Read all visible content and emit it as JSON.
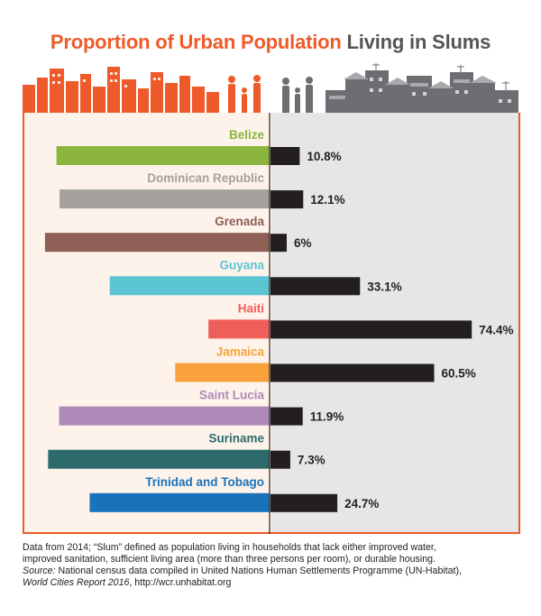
{
  "header": {
    "title_part1": "Proportion of Urban Population",
    "title_part2": "Living in Slums"
  },
  "colors": {
    "accent": "#ee5a29",
    "slum_bar": "#231f20",
    "left_panel": "#fdf3ea",
    "right_panel": "#e6e6e8"
  },
  "chart_data": {
    "type": "bar",
    "title": "Proportion of Urban Population Living in Slums",
    "categories": [
      "Belize",
      "Dominican Republic",
      "Grenada",
      "Guyana",
      "Haiti",
      "Jamaica",
      "Saint Lucia",
      "Suriname",
      "Trinidad and Tobago"
    ],
    "values": [
      10.8,
      12.1,
      6,
      33.1,
      74.4,
      60.5,
      11.9,
      7.3,
      24.7
    ],
    "value_labels": [
      "10.8%",
      "12.1%",
      "6%",
      "33.1%",
      "74.4%",
      "60.5%",
      "11.9%",
      "7.3%",
      "24.7%"
    ],
    "category_colors": [
      "#8cb53f",
      "#a5a19d",
      "#8d5f55",
      "#5bc5d3",
      "#ef5f5a",
      "#f9a23c",
      "#ad8ab8",
      "#2d6a6b",
      "#1a72ba"
    ],
    "unit": "%",
    "xlim": [
      0,
      100
    ]
  },
  "footnote": {
    "line1": "Data from 2014; “Slum” defined as population living in households that lack either improved water,",
    "line2": "improved sanitation, sufficient living area (more than three persons per room), or durable housing.",
    "source_label": "Source:",
    "source_text": " National census data compiled in United Nations Human Settlements Programme (UN-Habitat),",
    "report_title": "World Cities Report 2016",
    "report_url": ", http://wcr.unhabitat.org"
  }
}
